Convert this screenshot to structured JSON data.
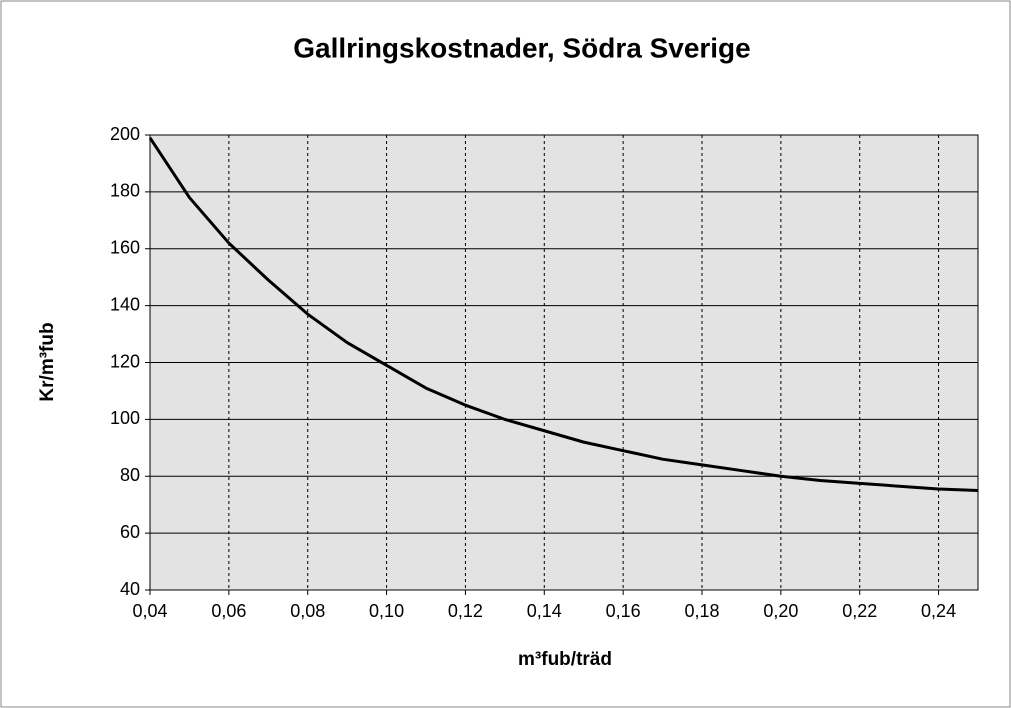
{
  "chart_data": {
    "type": "line",
    "title": "Gallringskostnader, Södra Sverige",
    "xlabel": "m³fub/träd",
    "ylabel": "Kr/m³fub",
    "x": [
      0.04,
      0.05,
      0.06,
      0.07,
      0.08,
      0.09,
      0.1,
      0.11,
      0.12,
      0.13,
      0.14,
      0.15,
      0.16,
      0.17,
      0.18,
      0.19,
      0.2,
      0.21,
      0.22,
      0.23,
      0.24,
      0.25
    ],
    "values": [
      199,
      178,
      162,
      149,
      137,
      127,
      119,
      111,
      105,
      100,
      96,
      92,
      89,
      86,
      84,
      82,
      80,
      78.5,
      77.5,
      76.5,
      75.5,
      75
    ],
    "color": "#000000",
    "xlim": [
      0.04,
      0.25
    ],
    "xticks": [
      {
        "value": 0.04,
        "label": "0,04"
      },
      {
        "value": 0.06,
        "label": "0,06"
      },
      {
        "value": 0.08,
        "label": "0,08"
      },
      {
        "value": 0.1,
        "label": "0,10"
      },
      {
        "value": 0.12,
        "label": "0,12"
      },
      {
        "value": 0.14,
        "label": "0,14"
      },
      {
        "value": 0.16,
        "label": "0,16"
      },
      {
        "value": 0.18,
        "label": "0,18"
      },
      {
        "value": 0.2,
        "label": "0,20"
      },
      {
        "value": 0.22,
        "label": "0,22"
      },
      {
        "value": 0.24,
        "label": "0,24"
      }
    ],
    "ylim": [
      40,
      200
    ],
    "yticks": [
      40,
      60,
      80,
      100,
      120,
      140,
      160,
      180,
      200
    ],
    "grid": true
  }
}
